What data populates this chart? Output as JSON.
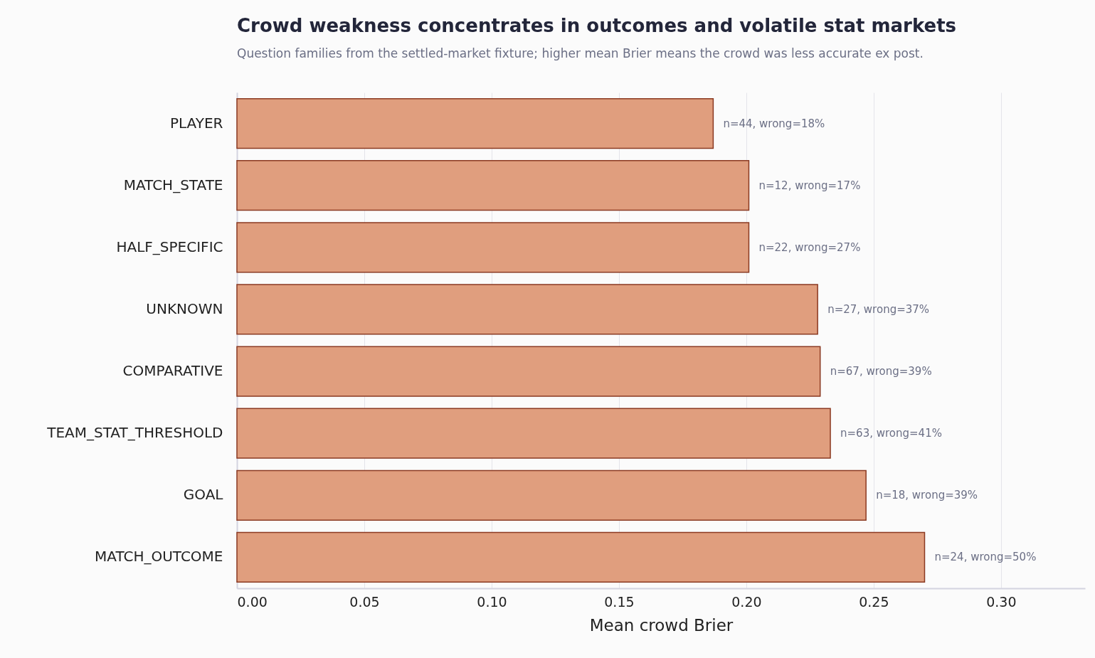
{
  "chart_data": {
    "type": "bar",
    "orientation": "horizontal",
    "title": "Crowd weakness concentrates in outcomes and volatile stat markets",
    "subtitle": "Question families from the settled-market fixture; higher mean Brier means the crowd was less accurate ex post.",
    "xlabel": "Mean crowd Brier",
    "categories": [
      "PLAYER",
      "MATCH_STATE",
      "HALF_SPECIFIC",
      "UNKNOWN",
      "COMPARATIVE",
      "TEAM_STAT_THRESHOLD",
      "GOAL",
      "MATCH_OUTCOME"
    ],
    "values": [
      0.187,
      0.201,
      0.201,
      0.228,
      0.229,
      0.233,
      0.247,
      0.27
    ],
    "annotations": [
      {
        "text": "n=44, wrong=18%",
        "x": 0.187,
        "y": "PLAYER"
      },
      {
        "text": "n=12, wrong=17%",
        "x": 0.201,
        "y": "MATCH_STATE"
      },
      {
        "text": "n=22, wrong=27%",
        "x": 0.201,
        "y": "HALF_SPECIFIC"
      },
      {
        "text": "n=27, wrong=37%",
        "x": 0.228,
        "y": "UNKNOWN"
      },
      {
        "text": "n=67, wrong=39%",
        "x": 0.229,
        "y": "COMPARATIVE"
      },
      {
        "text": "n=63, wrong=41%",
        "x": 0.233,
        "y": "TEAM_STAT_THRESHOLD"
      },
      {
        "text": "n=18, wrong=39%",
        "x": 0.247,
        "y": "GOAL"
      },
      {
        "text": "n=24, wrong=50%",
        "x": 0.27,
        "y": "MATCH_OUTCOME"
      }
    ],
    "color": "#e09e7e",
    "xlim": [
      0,
      0.333
    ],
    "xticks": [
      {
        "value": 0,
        "label": "0.00"
      },
      {
        "value": 0.05,
        "label": "0.05"
      },
      {
        "value": 0.1,
        "label": "0.10"
      },
      {
        "value": 0.15,
        "label": "0.15"
      },
      {
        "value": 0.2,
        "label": "0.20"
      },
      {
        "value": 0.25,
        "label": "0.25"
      },
      {
        "value": 0.3,
        "label": "0.30"
      }
    ],
    "grid": "x"
  }
}
